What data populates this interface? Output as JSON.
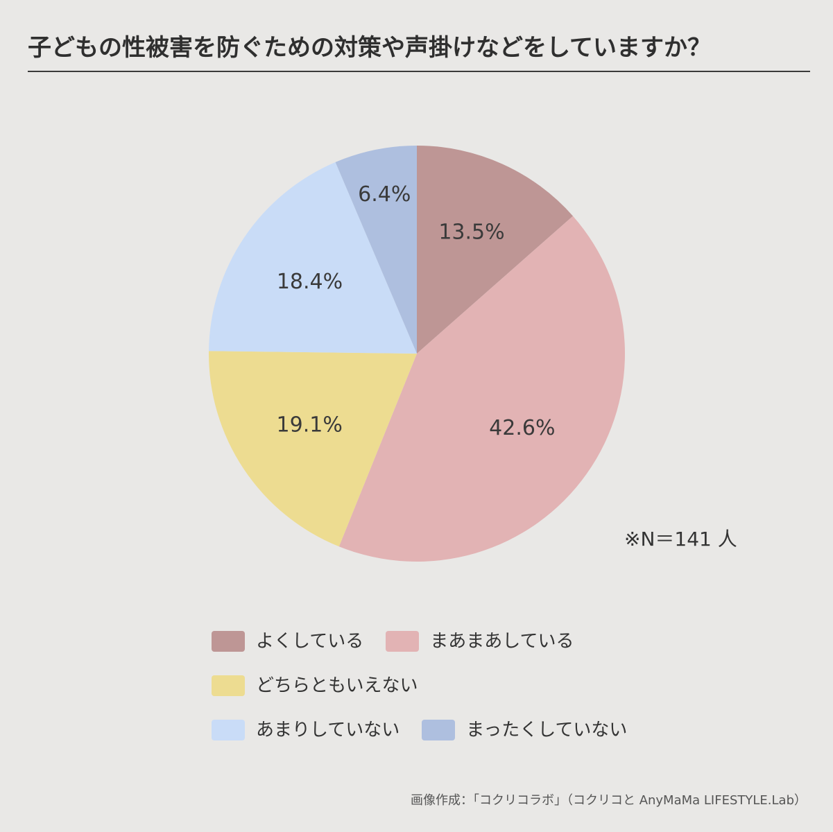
{
  "title": "子どもの性被害を防ぐための対策や声掛けなどをしていますか？",
  "note": "※N＝141 人",
  "credit": "画像作成：「コクリコラボ」（コクリコと AnyMaMa LIFESTYLE.Lab）",
  "chart_data": {
    "type": "pie",
    "title": "子どもの性被害を防ぐための対策や声掛けなどをしていますか？",
    "slices": [
      {
        "label": "よくしている",
        "value": 13.5,
        "display": "13.5%",
        "color": "#be9695"
      },
      {
        "label": "まあまあしている",
        "value": 42.6,
        "display": "42.6%",
        "color": "#e2b3b4"
      },
      {
        "label": "どちらともいえない",
        "value": 19.1,
        "display": "19.1%",
        "color": "#eddc91"
      },
      {
        "label": "あまりしていない",
        "value": 18.4,
        "display": "18.4%",
        "color": "#c9dcf7"
      },
      {
        "label": "まったくしていない",
        "value": 6.4,
        "display": "6.4%",
        "color": "#aebfdf"
      }
    ],
    "start": "top",
    "direction": "clockwise",
    "legend_placement": "bottom"
  }
}
